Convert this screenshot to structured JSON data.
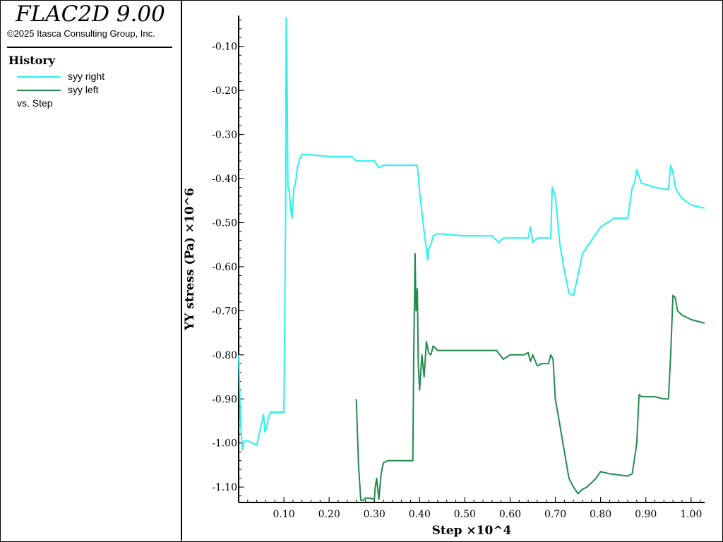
{
  "app": {
    "title": "FLAC2D 9.00",
    "copyright": "©2025 Itasca Consulting Group, Inc."
  },
  "legend": {
    "heading": "History",
    "entries": [
      {
        "label": "syy right",
        "color": "#26f2f0"
      },
      {
        "label": "syy left",
        "color": "#228b50"
      }
    ],
    "vs_label": "vs. Step"
  },
  "chart_data": {
    "type": "line",
    "xlabel": "Step ×10^4",
    "ylabel": "YY stress (Pa) ×10^6",
    "xlim": [
      0.0,
      1.03
    ],
    "ylim": [
      -1.135,
      -0.03
    ],
    "x_ticks": [
      0.1,
      0.2,
      0.3,
      0.4,
      0.5,
      0.6,
      0.7,
      0.8,
      0.9,
      1.0
    ],
    "x_tick_labels": [
      "0.10",
      "0.20",
      "0.30",
      "0.40",
      "0.50",
      "0.60",
      "0.70",
      "0.80",
      "0.90",
      "1.00"
    ],
    "y_ticks": [
      -0.1,
      -0.2,
      -0.3,
      -0.4,
      -0.5,
      -0.6,
      -0.7,
      -0.8,
      -0.9,
      -1.0,
      -1.1
    ],
    "y_tick_labels": [
      "-0.10",
      "-0.20",
      "-0.30",
      "-0.40",
      "-0.50",
      "-0.60",
      "-0.70",
      "-0.80",
      "-0.90",
      "-1.00",
      "-1.10"
    ],
    "grid": false,
    "series": [
      {
        "name": "syy right",
        "color": "#26f2f0",
        "x": [
          0.0,
          0.004,
          0.008,
          0.012,
          0.02,
          0.04,
          0.05,
          0.055,
          0.058,
          0.062,
          0.065,
          0.07,
          0.08,
          0.09,
          0.1,
          0.104,
          0.105,
          0.107,
          0.109,
          0.112,
          0.115,
          0.118,
          0.122,
          0.125,
          0.13,
          0.135,
          0.14,
          0.15,
          0.2,
          0.25,
          0.26,
          0.3,
          0.31,
          0.32,
          0.35,
          0.395,
          0.4,
          0.41,
          0.415,
          0.418,
          0.42,
          0.425,
          0.43,
          0.44,
          0.5,
          0.56,
          0.575,
          0.585,
          0.6,
          0.64,
          0.645,
          0.65,
          0.66,
          0.69,
          0.693,
          0.7,
          0.71,
          0.72,
          0.73,
          0.74,
          0.75,
          0.76,
          0.78,
          0.8,
          0.83,
          0.86,
          0.87,
          0.875,
          0.88,
          0.89,
          0.92,
          0.95,
          0.955,
          0.96,
          0.965,
          0.97,
          0.98,
          1.0,
          1.03
        ],
        "y": [
          -0.8,
          -0.95,
          -1.015,
          -0.995,
          -0.995,
          -1.005,
          -0.96,
          -0.935,
          -0.975,
          -0.965,
          -0.945,
          -0.93,
          -0.93,
          -0.93,
          -0.93,
          -0.47,
          -0.035,
          -0.18,
          -0.42,
          -0.43,
          -0.47,
          -0.49,
          -0.42,
          -0.415,
          -0.375,
          -0.355,
          -0.345,
          -0.345,
          -0.35,
          -0.35,
          -0.36,
          -0.36,
          -0.375,
          -0.37,
          -0.37,
          -0.37,
          -0.43,
          -0.52,
          -0.56,
          -0.585,
          -0.56,
          -0.55,
          -0.53,
          -0.525,
          -0.53,
          -0.53,
          -0.545,
          -0.535,
          -0.535,
          -0.535,
          -0.51,
          -0.545,
          -0.535,
          -0.535,
          -0.42,
          -0.44,
          -0.55,
          -0.61,
          -0.66,
          -0.665,
          -0.62,
          -0.57,
          -0.54,
          -0.51,
          -0.49,
          -0.49,
          -0.42,
          -0.41,
          -0.38,
          -0.41,
          -0.42,
          -0.425,
          -0.37,
          -0.385,
          -0.42,
          -0.43,
          -0.445,
          -0.46,
          -0.467
        ]
      },
      {
        "name": "syy left",
        "color": "#228b50",
        "x": [
          0.26,
          0.265,
          0.27,
          0.275,
          0.28,
          0.29,
          0.3,
          0.302,
          0.305,
          0.31,
          0.315,
          0.32,
          0.33,
          0.35,
          0.385,
          0.387,
          0.39,
          0.392,
          0.395,
          0.397,
          0.4,
          0.405,
          0.41,
          0.415,
          0.42,
          0.425,
          0.43,
          0.44,
          0.5,
          0.56,
          0.57,
          0.585,
          0.6,
          0.63,
          0.64,
          0.645,
          0.65,
          0.66,
          0.67,
          0.685,
          0.69,
          0.695,
          0.7,
          0.71,
          0.72,
          0.73,
          0.74,
          0.75,
          0.755,
          0.76,
          0.77,
          0.79,
          0.8,
          0.82,
          0.86,
          0.87,
          0.88,
          0.885,
          0.89,
          0.92,
          0.94,
          0.95,
          0.955,
          0.96,
          0.965,
          0.97,
          0.98,
          1.0,
          1.03
        ],
        "y": [
          -0.9,
          -1.05,
          -1.13,
          -1.13,
          -1.125,
          -1.125,
          -1.128,
          -1.1,
          -1.08,
          -1.128,
          -1.07,
          -1.045,
          -1.04,
          -1.04,
          -1.04,
          -0.8,
          -0.57,
          -0.7,
          -0.65,
          -0.82,
          -0.88,
          -0.8,
          -0.85,
          -0.77,
          -0.795,
          -0.8,
          -0.78,
          -0.79,
          -0.79,
          -0.79,
          -0.79,
          -0.81,
          -0.8,
          -0.8,
          -0.795,
          -0.815,
          -0.8,
          -0.825,
          -0.82,
          -0.82,
          -0.8,
          -0.81,
          -0.9,
          -0.96,
          -1.02,
          -1.08,
          -1.1,
          -1.115,
          -1.11,
          -1.105,
          -1.1,
          -1.08,
          -1.065,
          -1.07,
          -1.075,
          -1.07,
          -1.0,
          -0.89,
          -0.895,
          -0.895,
          -0.9,
          -0.9,
          -0.8,
          -0.665,
          -0.67,
          -0.7,
          -0.71,
          -0.72,
          -0.728
        ]
      }
    ]
  }
}
